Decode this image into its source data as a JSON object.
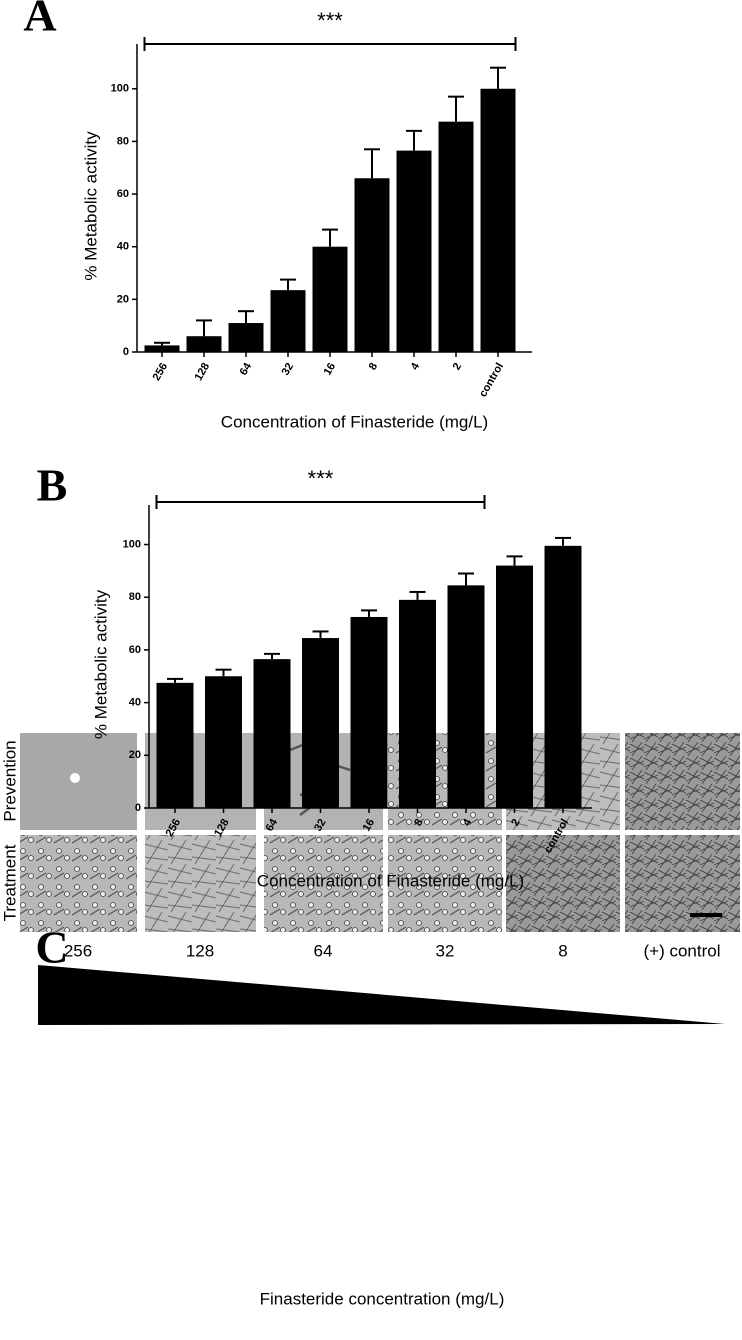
{
  "chart_data": [
    {
      "type": "bar",
      "panel": "A",
      "annotation": {
        "label": "***",
        "from": "256",
        "to": "control"
      },
      "categories": [
        "256",
        "128",
        "64",
        "32",
        "16",
        "8",
        "4",
        "2",
        "control"
      ],
      "values": [
        2.5,
        6,
        11,
        23.5,
        40,
        66,
        76.5,
        87.5,
        100
      ],
      "errors": [
        1,
        6,
        4.5,
        4,
        6.5,
        11,
        7.5,
        9.5,
        8
      ],
      "color": "#000000",
      "ylabel": "% Metabolic activity",
      "xlabel": "Concentration of Finasteride (mg/L)",
      "ylim": [
        0,
        117
      ],
      "yticks": [
        0,
        20,
        40,
        60,
        80,
        100
      ]
    },
    {
      "type": "bar",
      "panel": "B",
      "annotation": {
        "label": "***",
        "from": "256",
        "to": "4"
      },
      "categories": [
        "256",
        "128",
        "64",
        "32",
        "16",
        "8",
        "4",
        "2",
        "control"
      ],
      "values": [
        47.5,
        50,
        56.5,
        64.5,
        72.5,
        79,
        84.5,
        92,
        99.5
      ],
      "errors": [
        1.5,
        2.5,
        2,
        2.5,
        2.5,
        3,
        4.5,
        3.5,
        3
      ],
      "color": "#000000",
      "ylabel": "% Metabolic activity",
      "xlabel": "Concentration of Finasteride (mg/L)",
      "ylim": [
        0,
        115
      ],
      "yticks": [
        0,
        20,
        40,
        60,
        80,
        100
      ]
    }
  ],
  "panel_c": {
    "panel": "C",
    "rows": [
      "Prevention",
      "Treatment"
    ],
    "columns": [
      "256",
      "128",
      "64",
      "32",
      "8",
      "(+) control"
    ],
    "xlabel": "Finasteride concentration (mg/L)"
  }
}
